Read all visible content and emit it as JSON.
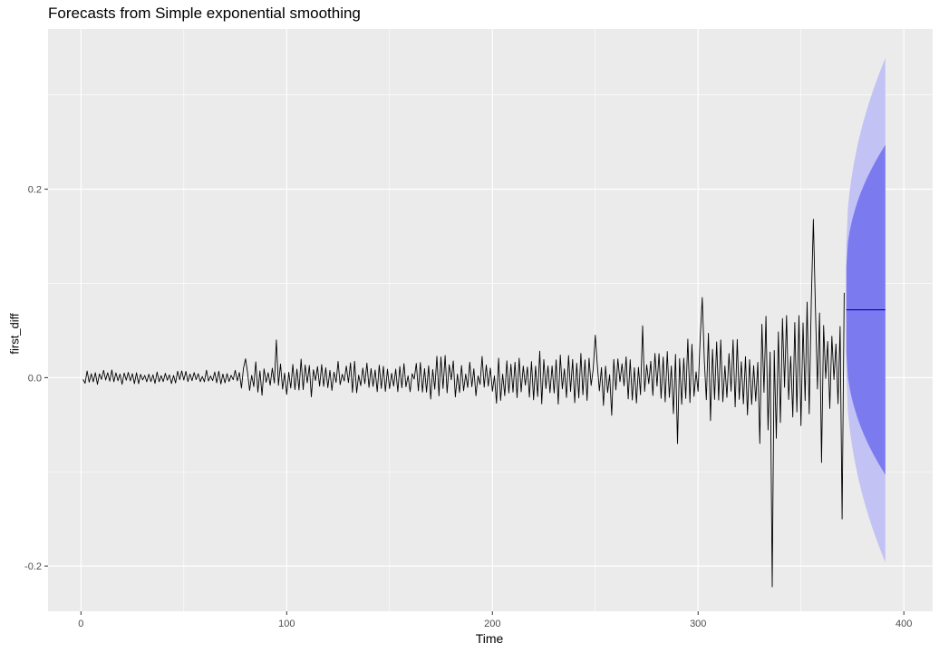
{
  "chart_data": {
    "type": "line",
    "title": "Forecasts from Simple exponential smoothing",
    "xlabel": "Time",
    "ylabel": "first_diff",
    "xlim": [
      -16,
      414
    ],
    "ylim": [
      -0.248,
      0.37
    ],
    "xticks": [
      {
        "value": 0,
        "label": "0"
      },
      {
        "value": 100,
        "label": "100"
      },
      {
        "value": 200,
        "label": "200"
      },
      {
        "value": 300,
        "label": "300"
      },
      {
        "value": 400,
        "label": "400"
      }
    ],
    "yticks": [
      {
        "value": -0.2,
        "label": "-0.2"
      },
      {
        "value": 0.0,
        "label": "0.0"
      },
      {
        "value": 0.2,
        "label": "0.2"
      }
    ],
    "grid": true,
    "series_observed": {
      "name": "first_diff",
      "n": 371,
      "start_x": 1,
      "color": "#000000"
    },
    "forecast": {
      "start_x": 372,
      "end_x": 391,
      "point_value": 0.072,
      "color": "#0000cc",
      "pi80": {
        "lower_start": 0.027,
        "upper_start": 0.117,
        "lower_end": -0.103,
        "upper_end": 0.247,
        "color": "#7b7bef"
      },
      "pi95": {
        "lower_start": 0.005,
        "upper_start": 0.139,
        "lower_end": -0.196,
        "upper_end": 0.339,
        "color": "#c2c2f5"
      }
    },
    "anchor_points": [
      {
        "x": 1,
        "y": -0.002
      },
      {
        "x": 80,
        "y": 0.02
      },
      {
        "x": 95,
        "y": 0.04
      },
      {
        "x": 250,
        "y": 0.045
      },
      {
        "x": 258,
        "y": -0.04
      },
      {
        "x": 273,
        "y": 0.055
      },
      {
        "x": 290,
        "y": -0.07
      },
      {
        "x": 302,
        "y": 0.085
      },
      {
        "x": 336,
        "y": -0.222
      },
      {
        "x": 356,
        "y": 0.168
      },
      {
        "x": 360,
        "y": -0.09
      },
      {
        "x": 370,
        "y": -0.15
      },
      {
        "x": 371,
        "y": 0.09
      }
    ]
  }
}
